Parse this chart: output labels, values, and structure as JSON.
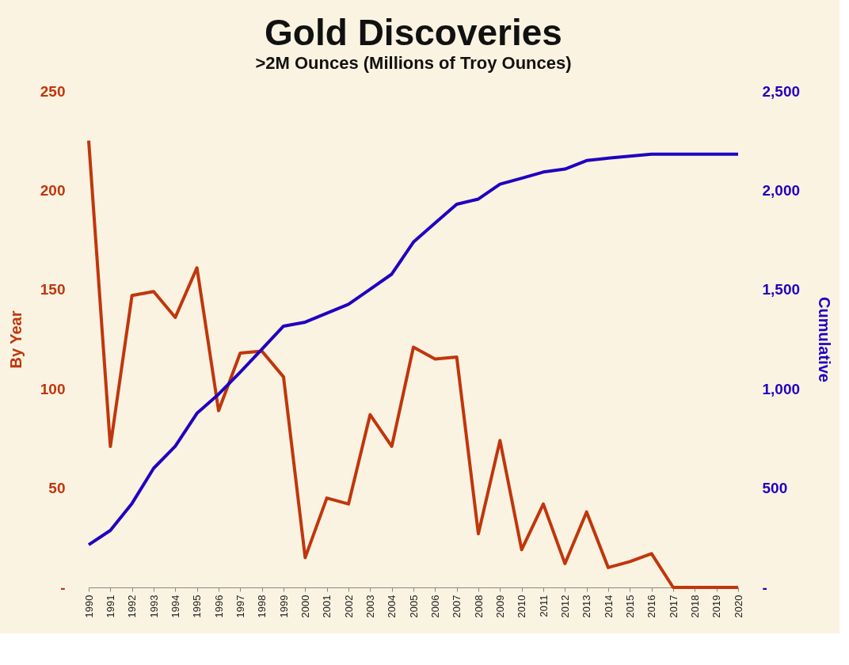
{
  "chart_data": {
    "type": "line",
    "title": "Gold Discoveries",
    "subtitle": ">2M Ounces (Millions of Troy Ounces)",
    "ylabel": "By Year",
    "y2label": "Cumulative",
    "categories": [
      "1990",
      "1991",
      "1992",
      "1993",
      "1994",
      "1995",
      "1996",
      "1997",
      "1998",
      "1999",
      "2000",
      "2001",
      "2002",
      "2003",
      "2004",
      "2005",
      "2006",
      "2007",
      "2008",
      "2009",
      "2010",
      "2011",
      "2012",
      "2013",
      "2014",
      "2015",
      "2016",
      "2017",
      "2018",
      "2019",
      "2020"
    ],
    "series": [
      {
        "color": "#c0360c",
        "values": [
          225,
          71,
          147,
          149,
          136,
          161,
          89,
          118,
          119,
          106,
          15,
          45,
          42,
          87,
          71,
          121,
          115,
          116,
          27,
          74,
          19,
          42,
          12,
          38,
          10,
          13,
          17,
          0,
          0,
          0,
          0
        ]
      },
      {
        "color": "#2000c0",
        "axis": "y2",
        "values": [
          215,
          287,
          423,
          600,
          711,
          877,
          973,
          1084,
          1200,
          1316,
          1336,
          1381,
          1426,
          1502,
          1578,
          1739,
          1835,
          1930,
          1956,
          2031,
          2061,
          2092,
          2107,
          2150,
          2162,
          2172,
          2182,
          2182,
          2182,
          2182,
          2182
        ]
      }
    ],
    "ylim": [
      0,
      250
    ],
    "yticks": [
      {
        "value": 0,
        "label": "-"
      },
      50,
      100,
      150,
      200,
      250
    ],
    "y2lim": [
      0,
      2500
    ],
    "y2ticks": [
      {
        "value": 0,
        "label": "-"
      },
      500,
      {
        "value": 1000,
        "label": "1,000"
      },
      {
        "value": 1500,
        "label": "1,500"
      },
      {
        "value": 2000,
        "label": "2,000"
      },
      {
        "value": 2500,
        "label": "2,500"
      }
    ],
    "grid": false,
    "marker": "none",
    "line_style": "solid"
  }
}
